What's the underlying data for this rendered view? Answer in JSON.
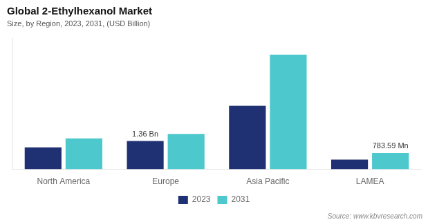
{
  "chart_data": {
    "type": "bar",
    "title": "Global 2-Ethylhexanol Market",
    "subtitle": "Size, by Region, 2023, 2031, (USD Billion)",
    "source": "Source: www.kbvresearch.com",
    "categories": [
      "North America",
      "Europe",
      "Asia Pacific",
      "LAMEA"
    ],
    "series": [
      {
        "name": "2023",
        "color": "#1f3172",
        "values": [
          1.05,
          1.36,
          3.05,
          0.47
        ]
      },
      {
        "name": "2031",
        "color": "#4dc8cc",
        "values": [
          1.48,
          1.7,
          5.5,
          0.78359
        ]
      }
    ],
    "ylim": [
      0,
      6.3
    ],
    "tick_labels": "x",
    "grid": false,
    "legend": "bottom",
    "annotations": [
      {
        "text": "1.36 Bn",
        "category": "Europe",
        "series": "2023"
      },
      {
        "text": "783.59 Mn",
        "category": "LAMEA",
        "series": "2031"
      }
    ]
  }
}
